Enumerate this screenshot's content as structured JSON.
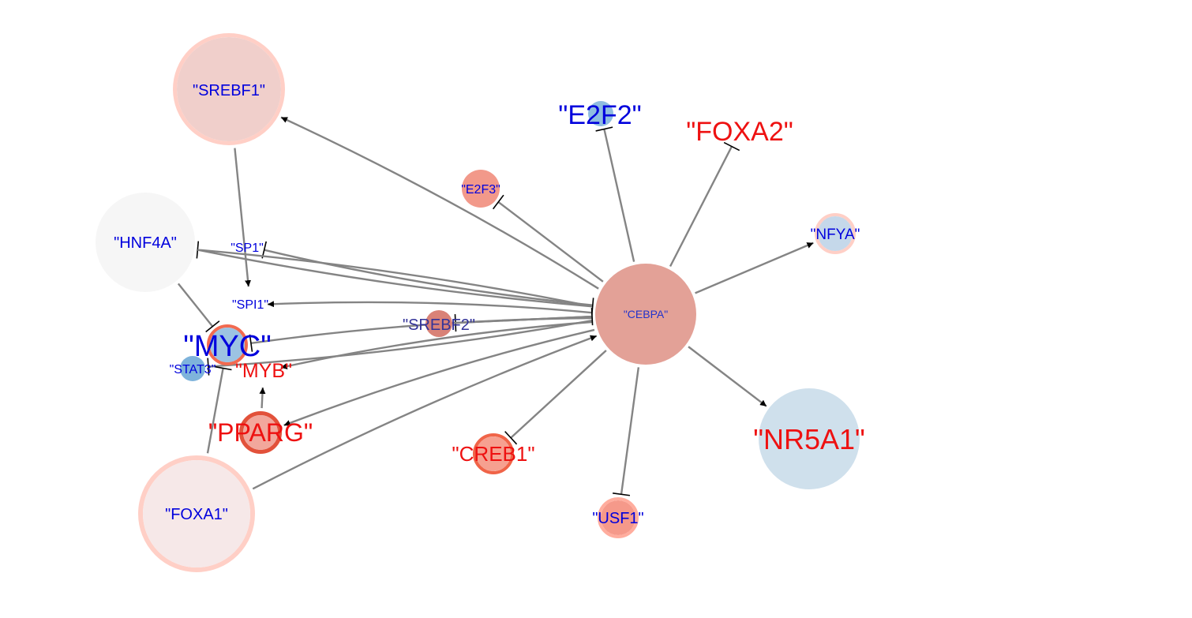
{
  "diagram": {
    "nodes": [
      {
        "id": "cebpa",
        "label": "\"CEBPA\"",
        "fill": "#e3a197",
        "ring": "#e3a197",
        "text_color": "#2233cc"
      },
      {
        "id": "srebf1",
        "label": "\"SREBF1\"",
        "fill": "#f0cfcb",
        "ring": "#ffcfc6",
        "text_color": "#0000dd"
      },
      {
        "id": "hnf4a",
        "label": "\"HNF4A\"",
        "fill": "#f6f6f6",
        "ring": "#f6f6f6",
        "text_color": "#0000dd"
      },
      {
        "id": "e2f2",
        "label": "\"E2F2\"",
        "fill": "#8fbde0",
        "ring": "#8fbde0",
        "text_color": "#0000dd"
      },
      {
        "id": "foxa2",
        "label": "\"FOXA2\"",
        "fill": "#ffffff",
        "ring": "#ffffff",
        "text_color": "#ee1111"
      },
      {
        "id": "e2f3",
        "label": "\"E2F3\"",
        "fill": "#f2998a",
        "ring": "#f2998a",
        "text_color": "#0000dd"
      },
      {
        "id": "nfya",
        "label": "\"NFYA\"",
        "fill": "#c5d8ea",
        "ring": "#ffcfc6",
        "text_color": "#0000dd"
      },
      {
        "id": "sp1",
        "label": "\"SP1\"",
        "fill": "#ffffff",
        "ring": "#ffffff",
        "text_color": "#0000dd"
      },
      {
        "id": "spi1",
        "label": "\"SPI1\"",
        "fill": "#ffffff",
        "ring": "#ffffff",
        "text_color": "#0000dd"
      },
      {
        "id": "srebf2",
        "label": "\"SREBF2\"",
        "fill": "#d98277",
        "ring": "#d98277",
        "text_color": "#333399"
      },
      {
        "id": "myc",
        "label": "\"MYC\"",
        "fill": "#9cc3e2",
        "ring": "#f26a50",
        "text_color": "#0000dd"
      },
      {
        "id": "stat3",
        "label": "\"STAT3\"",
        "fill": "#7eb3db",
        "ring": "#7eb3db",
        "text_color": "#0000dd"
      },
      {
        "id": "myb",
        "label": "\"MYB\"",
        "fill": "#ffffff",
        "ring": "#ffffff",
        "text_color": "#ee1111"
      },
      {
        "id": "pparg",
        "label": "\"PPARG\"",
        "fill": "#f2a79c",
        "ring": "#e2513a",
        "text_color": "#ee1111"
      },
      {
        "id": "creb1",
        "label": "\"CREB1\"",
        "fill": "#f6a090",
        "ring": "#f06448",
        "text_color": "#ee1111"
      },
      {
        "id": "foxa1",
        "label": "\"FOXA1\"",
        "fill": "#f6e8e8",
        "ring": "#ffcfc6",
        "text_color": "#0000dd"
      },
      {
        "id": "usf1",
        "label": "\"USF1\"",
        "fill": "#f5998a",
        "ring": "#ffad9e",
        "text_color": "#0000dd"
      },
      {
        "id": "nr5a1",
        "label": "\"NR5A1\"",
        "fill": "#cfe0ec",
        "ring": "#cfe0ec",
        "text_color": "#ee1111"
      }
    ],
    "edges": [
      {
        "from": "cebpa",
        "to": "srebf1",
        "type": "activation"
      },
      {
        "from": "cebpa",
        "to": "e2f2",
        "type": "inhibition"
      },
      {
        "from": "cebpa",
        "to": "foxa2",
        "type": "inhibition"
      },
      {
        "from": "cebpa",
        "to": "e2f3",
        "type": "inhibition"
      },
      {
        "from": "cebpa",
        "to": "nfya",
        "type": "activation"
      },
      {
        "from": "cebpa",
        "to": "nr5a1",
        "type": "activation"
      },
      {
        "from": "cebpa",
        "to": "usf1",
        "type": "inhibition"
      },
      {
        "from": "cebpa",
        "to": "creb1",
        "type": "inhibition"
      },
      {
        "from": "cebpa",
        "to": "pparg",
        "type": "activation"
      },
      {
        "from": "foxa1",
        "to": "cebpa",
        "type": "activation"
      },
      {
        "from": "cebpa",
        "to": "spi1",
        "type": "activation"
      },
      {
        "from": "cebpa",
        "to": "sp1",
        "type": "inhibition"
      },
      {
        "from": "cebpa",
        "to": "hnf4a",
        "type": "inhibition"
      },
      {
        "from": "cebpa",
        "to": "srebf2",
        "type": "inhibition"
      },
      {
        "from": "cebpa",
        "to": "myc",
        "type": "inhibition"
      },
      {
        "from": "cebpa",
        "to": "stat3",
        "type": "inhibition"
      },
      {
        "from": "cebpa",
        "to": "myb",
        "type": "activation"
      },
      {
        "from": "srebf2",
        "to": "cebpa",
        "type": "inhibition"
      },
      {
        "from": "hnf4a",
        "to": "cebpa",
        "type": "inhibition"
      },
      {
        "from": "srebf1",
        "to": "spi1",
        "type": "activation"
      },
      {
        "from": "hnf4a",
        "to": "myc",
        "type": "inhibition"
      },
      {
        "from": "foxa1",
        "to": "myc",
        "type": "inhibition"
      },
      {
        "from": "pparg",
        "to": "myb",
        "type": "activation"
      }
    ]
  }
}
